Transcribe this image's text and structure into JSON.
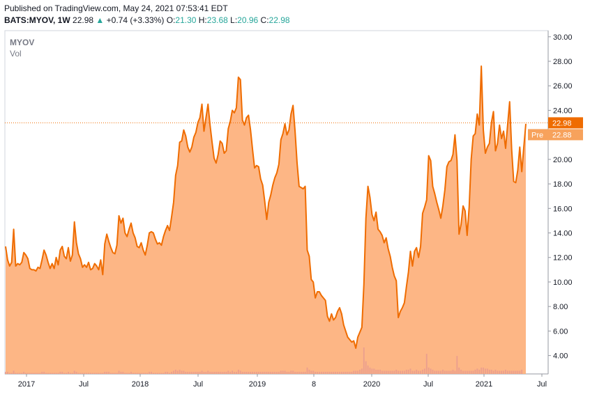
{
  "header": {
    "published": "Published on TradingView.com, May 24, 2021 07:53:41 EDT",
    "symbol": "BATS:MYOV, 1W",
    "last": "22.98",
    "change": "+0.74 (+3.33%)",
    "o_label": "O:",
    "o": "21.30",
    "h_label": "H:",
    "h": "23.68",
    "l_label": "L:",
    "l": "20.96",
    "c_label": "C:",
    "c": "22.98"
  },
  "legend": {
    "symbol": "MYOV",
    "volume": "Vol"
  },
  "colors": {
    "line": "#ef6c00",
    "area": "#fdb27e",
    "up": "#26a69a",
    "grid": "#e0e3eb"
  },
  "chart_data": {
    "type": "area",
    "series": [
      {
        "values": [
          12.9,
          11.8,
          11.3,
          11.6,
          14.3,
          11.3,
          11.5,
          11.4,
          11.6,
          12.4,
          12.2,
          11.9,
          11.1,
          11.0,
          11.0,
          10.9,
          11.2,
          11.1,
          11.8,
          12.6,
          12.2,
          11.6,
          11.1,
          11.5,
          11.1,
          12.0,
          11.4,
          12.6,
          12.9,
          12.1,
          11.9,
          12.8,
          11.7,
          12.2,
          14.9,
          13.2,
          12.3,
          11.9,
          11.2,
          11.4,
          11.2,
          11.6,
          11.0,
          11.1,
          11.5,
          11.3,
          11.0,
          11.8,
          10.6,
          13.1,
          13.9,
          13.3,
          12.8,
          12.4,
          12.3,
          13.0,
          15.4,
          14.8,
          15.2,
          14.0,
          13.7,
          14.3,
          14.8,
          14.0,
          13.6,
          12.9,
          12.8,
          13.2,
          12.6,
          12.2,
          13.0,
          14.0,
          14.1,
          14.0,
          13.5,
          13.1,
          13.2,
          13.0,
          13.7,
          14.2,
          14.6,
          14.2,
          15.3,
          16.5,
          18.7,
          19.5,
          21.4,
          21.5,
          22.4,
          21.9,
          21.0,
          20.6,
          21.0,
          21.8,
          22.2,
          23.0,
          23.4,
          24.5,
          22.3,
          23.4,
          24.5,
          22.8,
          21.4,
          20.1,
          19.7,
          20.4,
          21.5,
          21.3,
          20.5,
          20.7,
          22.5,
          23.1,
          24.0,
          23.8,
          24.2,
          26.7,
          26.5,
          23.2,
          22.8,
          23.4,
          23.6,
          22.4,
          20.8,
          19.3,
          19.5,
          19.4,
          18.4,
          17.9,
          16.6,
          15.1,
          16.5,
          17.1,
          17.9,
          18.5,
          18.9,
          19.6,
          21.6,
          22.1,
          22.9,
          22.0,
          22.4,
          23.7,
          24.4,
          22.3,
          19.7,
          17.8,
          17.7,
          17.6,
          17.8,
          12.6,
          12.1,
          10.2,
          10.0,
          8.7,
          9.2,
          9.2,
          8.9,
          8.7,
          8.5,
          7.2,
          6.8,
          7.4,
          6.9,
          7.1,
          7.6,
          7.9,
          7.4,
          6.5,
          6.0,
          5.5,
          5.3,
          5.1,
          5.2,
          4.6,
          5.5,
          5.9,
          6.3,
          9.8,
          15.2,
          17.8,
          16.9,
          15.5,
          15.0,
          15.7,
          14.3,
          14.1,
          13.8,
          13.2,
          13.6,
          12.7,
          12.1,
          11.2,
          10.5,
          10.1,
          7.1,
          7.6,
          7.9,
          8.3,
          9.6,
          10.8,
          12.5,
          11.3,
          12.5,
          12.8,
          12.0,
          12.9,
          15.6,
          16.1,
          16.7,
          20.3,
          19.9,
          17.8,
          17.2,
          16.5,
          15.9,
          15.2,
          16.2,
          17.5,
          19.4,
          19.8,
          19.9,
          20.4,
          22.0,
          19.9,
          13.9,
          14.7,
          16.2,
          15.8,
          13.8,
          16.1,
          20.0,
          21.9,
          22.1,
          23.7,
          22.8,
          27.6,
          22.4,
          20.5,
          21.0,
          21.3,
          23.0,
          23.9,
          20.7,
          21.3,
          22.8,
          21.7,
          22.3,
          20.9,
          22.8,
          24.7,
          20.8,
          18.2,
          18.1,
          19.1,
          21.0,
          19.0,
          21.0,
          22.9
        ]
      },
      {
        "name": "Vol",
        "values": [
          0.2,
          0.2,
          0.1,
          0.1,
          0.3,
          0.1,
          0.1,
          0.1,
          0.1,
          0.2,
          0.1,
          0.1,
          0.1,
          0.1,
          0.1,
          0.1,
          0.1,
          0.1,
          0.2,
          0.2,
          0.1,
          0.1,
          0.1,
          0.1,
          0.1,
          0.1,
          0.1,
          0.2,
          0.2,
          0.1,
          0.1,
          0.2,
          0.1,
          0.1,
          0.3,
          0.2,
          0.1,
          0.1,
          0.1,
          0.1,
          0.1,
          0.1,
          0.1,
          0.1,
          0.1,
          0.1,
          0.1,
          0.1,
          0.1,
          0.2,
          0.2,
          0.2,
          0.1,
          0.1,
          0.1,
          0.1,
          0.3,
          0.2,
          0.2,
          0.1,
          0.1,
          0.1,
          0.2,
          0.1,
          0.1,
          0.1,
          0.1,
          0.1,
          0.1,
          0.1,
          0.1,
          0.2,
          0.2,
          0.1,
          0.1,
          0.1,
          0.1,
          0.1,
          0.1,
          0.2,
          0.2,
          0.1,
          0.2,
          0.3,
          0.4,
          0.3,
          0.4,
          0.3,
          0.3,
          0.2,
          0.2,
          0.2,
          0.2,
          0.2,
          0.2,
          0.2,
          0.2,
          0.3,
          0.2,
          0.2,
          0.3,
          0.2,
          0.2,
          0.2,
          0.2,
          0.2,
          0.2,
          0.2,
          0.2,
          0.2,
          0.3,
          0.2,
          0.3,
          0.2,
          0.2,
          0.4,
          0.3,
          0.2,
          0.2,
          0.2,
          0.2,
          0.2,
          0.2,
          0.2,
          0.2,
          0.2,
          0.2,
          0.2,
          0.2,
          0.2,
          0.2,
          0.2,
          0.2,
          0.2,
          0.2,
          0.2,
          0.3,
          0.3,
          0.3,
          0.2,
          0.2,
          0.3,
          0.3,
          0.2,
          0.2,
          0.2,
          0.2,
          0.2,
          0.2,
          0.6,
          0.4,
          0.3,
          0.3,
          0.2,
          0.2,
          0.2,
          0.2,
          0.2,
          0.2,
          0.2,
          0.2,
          0.2,
          0.2,
          0.2,
          0.2,
          0.2,
          0.2,
          0.2,
          0.2,
          0.2,
          0.2,
          0.2,
          0.3,
          0.3,
          0.3,
          0.4,
          0.5,
          2.5,
          1.2,
          0.8,
          0.6,
          0.5,
          0.5,
          0.4,
          0.4,
          0.4,
          0.3,
          0.3,
          0.3,
          0.3,
          0.3,
          0.3,
          0.3,
          0.4,
          0.3,
          0.3,
          0.3,
          0.3,
          0.4,
          0.4,
          0.5,
          0.3,
          0.3,
          0.4,
          0.3,
          0.3,
          0.4,
          0.5,
          1.9,
          0.6,
          0.5,
          0.4,
          0.3,
          0.3,
          0.3,
          0.3,
          0.4,
          0.3,
          0.3,
          0.3,
          0.3,
          0.4,
          0.3,
          1.7,
          0.6,
          0.4,
          0.3,
          0.3,
          0.3,
          0.3,
          0.3,
          0.3,
          0.4,
          0.5,
          0.4,
          0.6,
          0.6,
          0.5,
          0.5,
          0.4,
          0.4,
          0.3,
          0.4,
          0.3,
          0.3,
          0.3,
          0.3,
          0.4,
          0.3,
          0.3,
          0.3,
          0.3,
          0.3,
          0.3,
          0.3,
          0.4
        ]
      }
    ],
    "x_labels": [
      "2017",
      "Jul",
      "2018",
      "Jul",
      "2019",
      "8",
      "2020",
      "Jul",
      "2021",
      "Jul"
    ],
    "y_ticks": [
      "30.00",
      "28.00",
      "26.00",
      "24.00",
      "22.00",
      "20.00",
      "18.00",
      "16.00",
      "14.00",
      "12.00",
      "10.00",
      "8.00",
      "6.00",
      "4.00"
    ],
    "ylim": [
      2.5,
      30.5
    ],
    "last_price_label": "22.98",
    "pre_label": "Pre",
    "pre_price_label": "22.88",
    "grid": false
  }
}
